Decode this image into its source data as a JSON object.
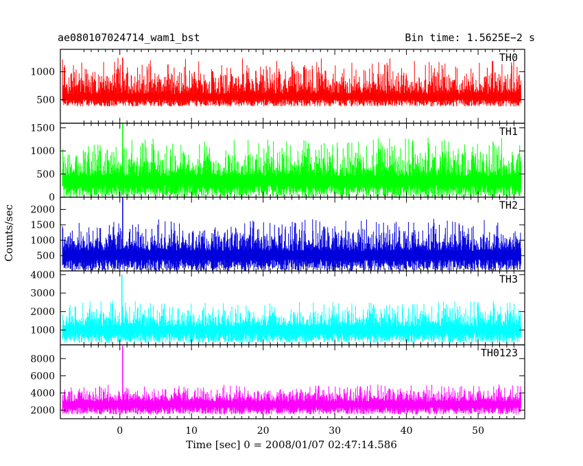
{
  "chart_data": {
    "type": "line",
    "title_left": "ae080107024714_wam1_bst",
    "title_right": "Bin time: 1.5625E−2 s",
    "xlabel": "Time [sec] 0 = 2008/01/07 02:47:14.586",
    "ylabel": "Counts/sec",
    "xlim": [
      -8.3,
      56.5
    ],
    "x_ticks": [
      0,
      10,
      20,
      30,
      40,
      50
    ],
    "x_data_range": [
      -8,
      56
    ],
    "grid": false,
    "panels": [
      {
        "name": "TH0",
        "color": "#ff0000",
        "ylim": [
          80,
          1400
        ],
        "y_ticks": [
          500,
          1000
        ],
        "baseline": 600,
        "noise_low": 380,
        "noise_high": 1250,
        "spike_at": 0.4,
        "spike_value": 1250
      },
      {
        "name": "TH1",
        "color": "#00ff00",
        "ylim": [
          0,
          1600
        ],
        "y_ticks": [
          0,
          500,
          1000,
          1500
        ],
        "baseline": 450,
        "noise_low": 0,
        "noise_high": 1300,
        "spike_at": 0.4,
        "spike_value": 1600
      },
      {
        "name": "TH2",
        "color": "#0000dd",
        "ylim": [
          0,
          2400
        ],
        "y_ticks": [
          500,
          1000,
          1500,
          2000
        ],
        "baseline": 650,
        "noise_low": 0,
        "noise_high": 1700,
        "spike_at": 0.4,
        "spike_value": 2400
      },
      {
        "name": "TH3",
        "color": "#00ffff",
        "ylim": [
          200,
          4200
        ],
        "y_ticks": [
          1000,
          2000,
          3000,
          4000
        ],
        "baseline": 1200,
        "noise_low": 300,
        "noise_high": 2600,
        "spike_at": 0.3,
        "spike_value": 4000
      },
      {
        "name": "TH0123",
        "color": "#ff00ff",
        "ylim": [
          1000,
          9600
        ],
        "y_ticks": [
          2000,
          4000,
          6000,
          8000
        ],
        "baseline": 3000,
        "noise_low": 1500,
        "noise_high": 5000,
        "spike_at": 0.4,
        "spike_value": 9500
      }
    ]
  }
}
